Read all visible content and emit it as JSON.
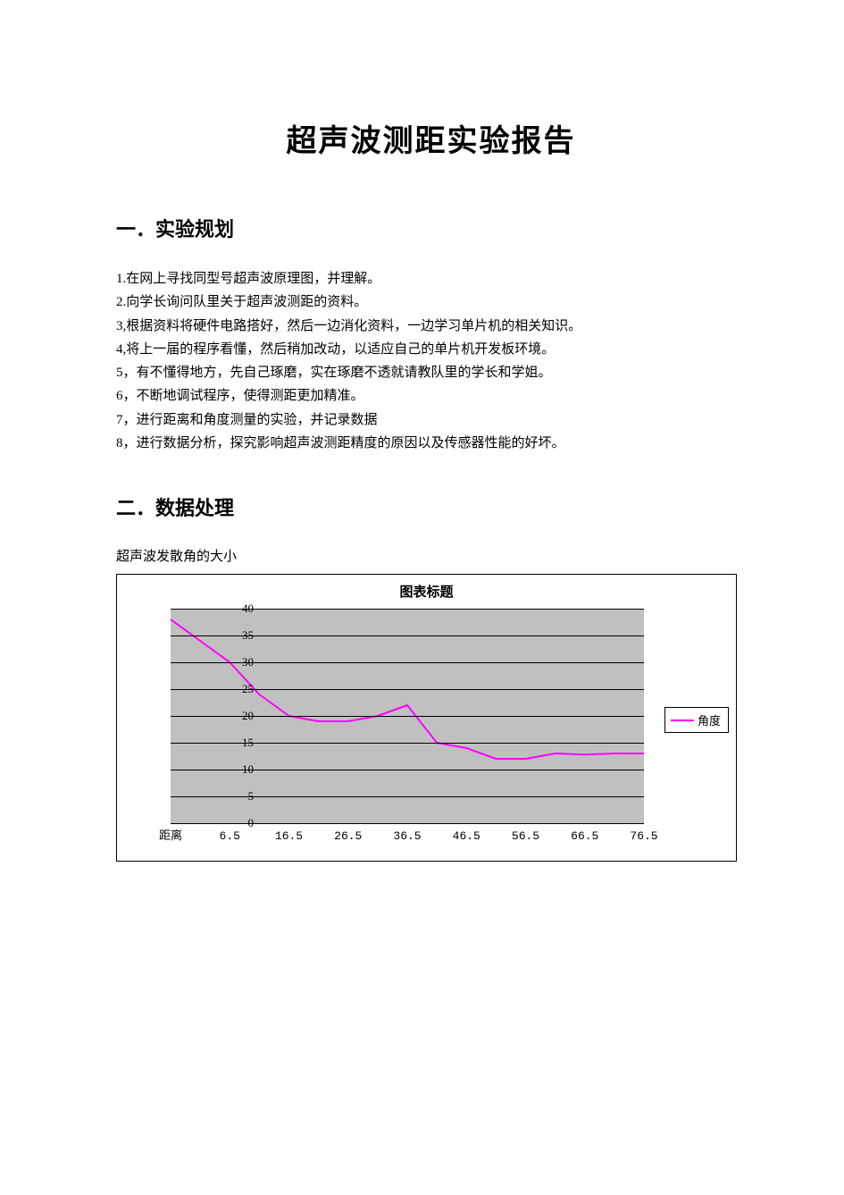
{
  "title": "超声波测距实验报告",
  "section1": {
    "header": "一．实验规划",
    "items": [
      "1.在网上寻找同型号超声波原理图，并理解。",
      "2.向学长询问队里关于超声波测距的资料。",
      "3,根据资料将硬件电路搭好，然后一边消化资料，一边学习单片机的相关知识。",
      "4,将上一届的程序看懂，然后稍加改动，以适应自己的单片机开发板环境。",
      "5，有不懂得地方，先自己琢磨，实在琢磨不透就请教队里的学长和学姐。",
      "6，不断地调试程序，使得测距更加精准。",
      "7，进行距离和角度测量的实验，并记录数据",
      "8，进行数据分析，探究影响超声波测距精度的原因以及传感器性能的好坏。"
    ]
  },
  "section2": {
    "header": "二．数据处理",
    "caption": "超声波发散角的大小"
  },
  "chart": {
    "type": "line",
    "title": "图表标题",
    "legend_label": "角度",
    "legend_color": "#ff00ff",
    "line_color": "#ff00ff",
    "line_width": 2,
    "plot_bg": "#c0c0c0",
    "grid_color": "#000000",
    "ylim": [
      0,
      40
    ],
    "ytick_step": 5,
    "yticks": [
      0,
      5,
      10,
      15,
      20,
      25,
      30,
      35,
      40
    ],
    "xticks": [
      "距离",
      "6.5",
      "16.5",
      "26.5",
      "36.5",
      "46.5",
      "56.5",
      "66.5",
      "76.5"
    ],
    "xvalues": [
      0,
      1,
      2,
      3,
      4,
      5,
      6,
      7,
      8,
      9,
      10,
      11,
      12,
      13,
      14,
      15,
      16
    ],
    "yvalues": [
      38,
      34,
      30,
      24,
      20,
      19,
      19,
      20,
      22,
      15,
      14,
      12,
      12,
      13,
      12.8,
      13,
      13
    ]
  }
}
